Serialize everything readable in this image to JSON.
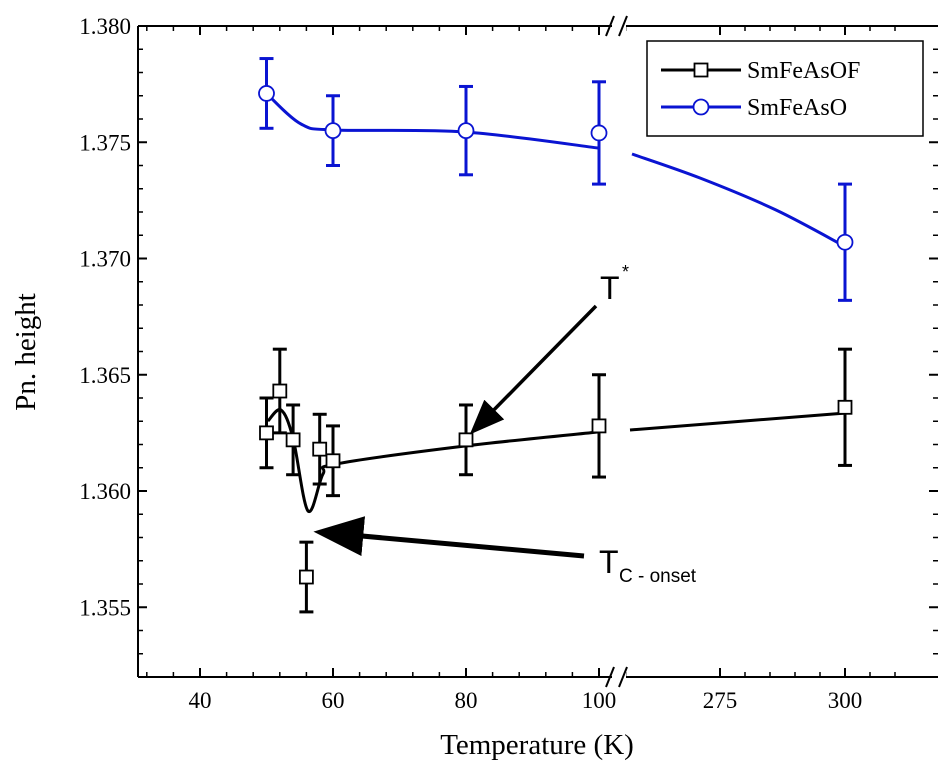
{
  "chart_data": {
    "type": "line",
    "xlabel": "Temperature (K)",
    "ylabel": "Pn. height",
    "ylim": [
      1.352,
      1.38
    ],
    "x_axis_break": "between 105 and 275 K",
    "x_ticks": [
      "40",
      "60",
      "80",
      "100",
      "275",
      "300"
    ],
    "y_ticks": [
      "1.355",
      "1.360",
      "1.365",
      "1.370",
      "1.375",
      "1.380"
    ],
    "legend_position": "top-right",
    "series": [
      {
        "name": "SmFeAsOF",
        "color": "#000000",
        "marker": "open-square",
        "points": [
          {
            "x": 50,
            "y": 1.3625,
            "err": 0.0015
          },
          {
            "x": 52,
            "y": 1.3643,
            "err": 0.0018
          },
          {
            "x": 54,
            "y": 1.3622,
            "err": 0.0015
          },
          {
            "x": 56,
            "y": 1.3563,
            "err": 0.0015
          },
          {
            "x": 58,
            "y": 1.3618,
            "err": 0.0015
          },
          {
            "x": 60,
            "y": 1.3613,
            "err": 0.0015
          },
          {
            "x": 80,
            "y": 1.3622,
            "err": 0.0015
          },
          {
            "x": 100,
            "y": 1.3628,
            "err": 0.0022
          },
          {
            "x": 300,
            "y": 1.3636,
            "err": 0.0025
          }
        ]
      },
      {
        "name": "SmFeAsO",
        "color": "#0a14d2",
        "marker": "open-circle",
        "points": [
          {
            "x": 50,
            "y": 1.3771,
            "err": 0.0015
          },
          {
            "x": 60,
            "y": 1.3755,
            "err": 0.0015
          },
          {
            "x": 80,
            "y": 1.3755,
            "err": 0.0019
          },
          {
            "x": 100,
            "y": 1.3754,
            "err": 0.0022
          },
          {
            "x": 300,
            "y": 1.3707,
            "err": 0.0025
          }
        ]
      }
    ],
    "annotations": [
      {
        "text": "T",
        "superscript": "*",
        "arrow_to": {
          "x": 81,
          "y": 1.3623
        }
      },
      {
        "text": "T",
        "subscript": "C - onset",
        "arrow_to": {
          "x": 56,
          "y": 1.3583
        }
      }
    ]
  }
}
